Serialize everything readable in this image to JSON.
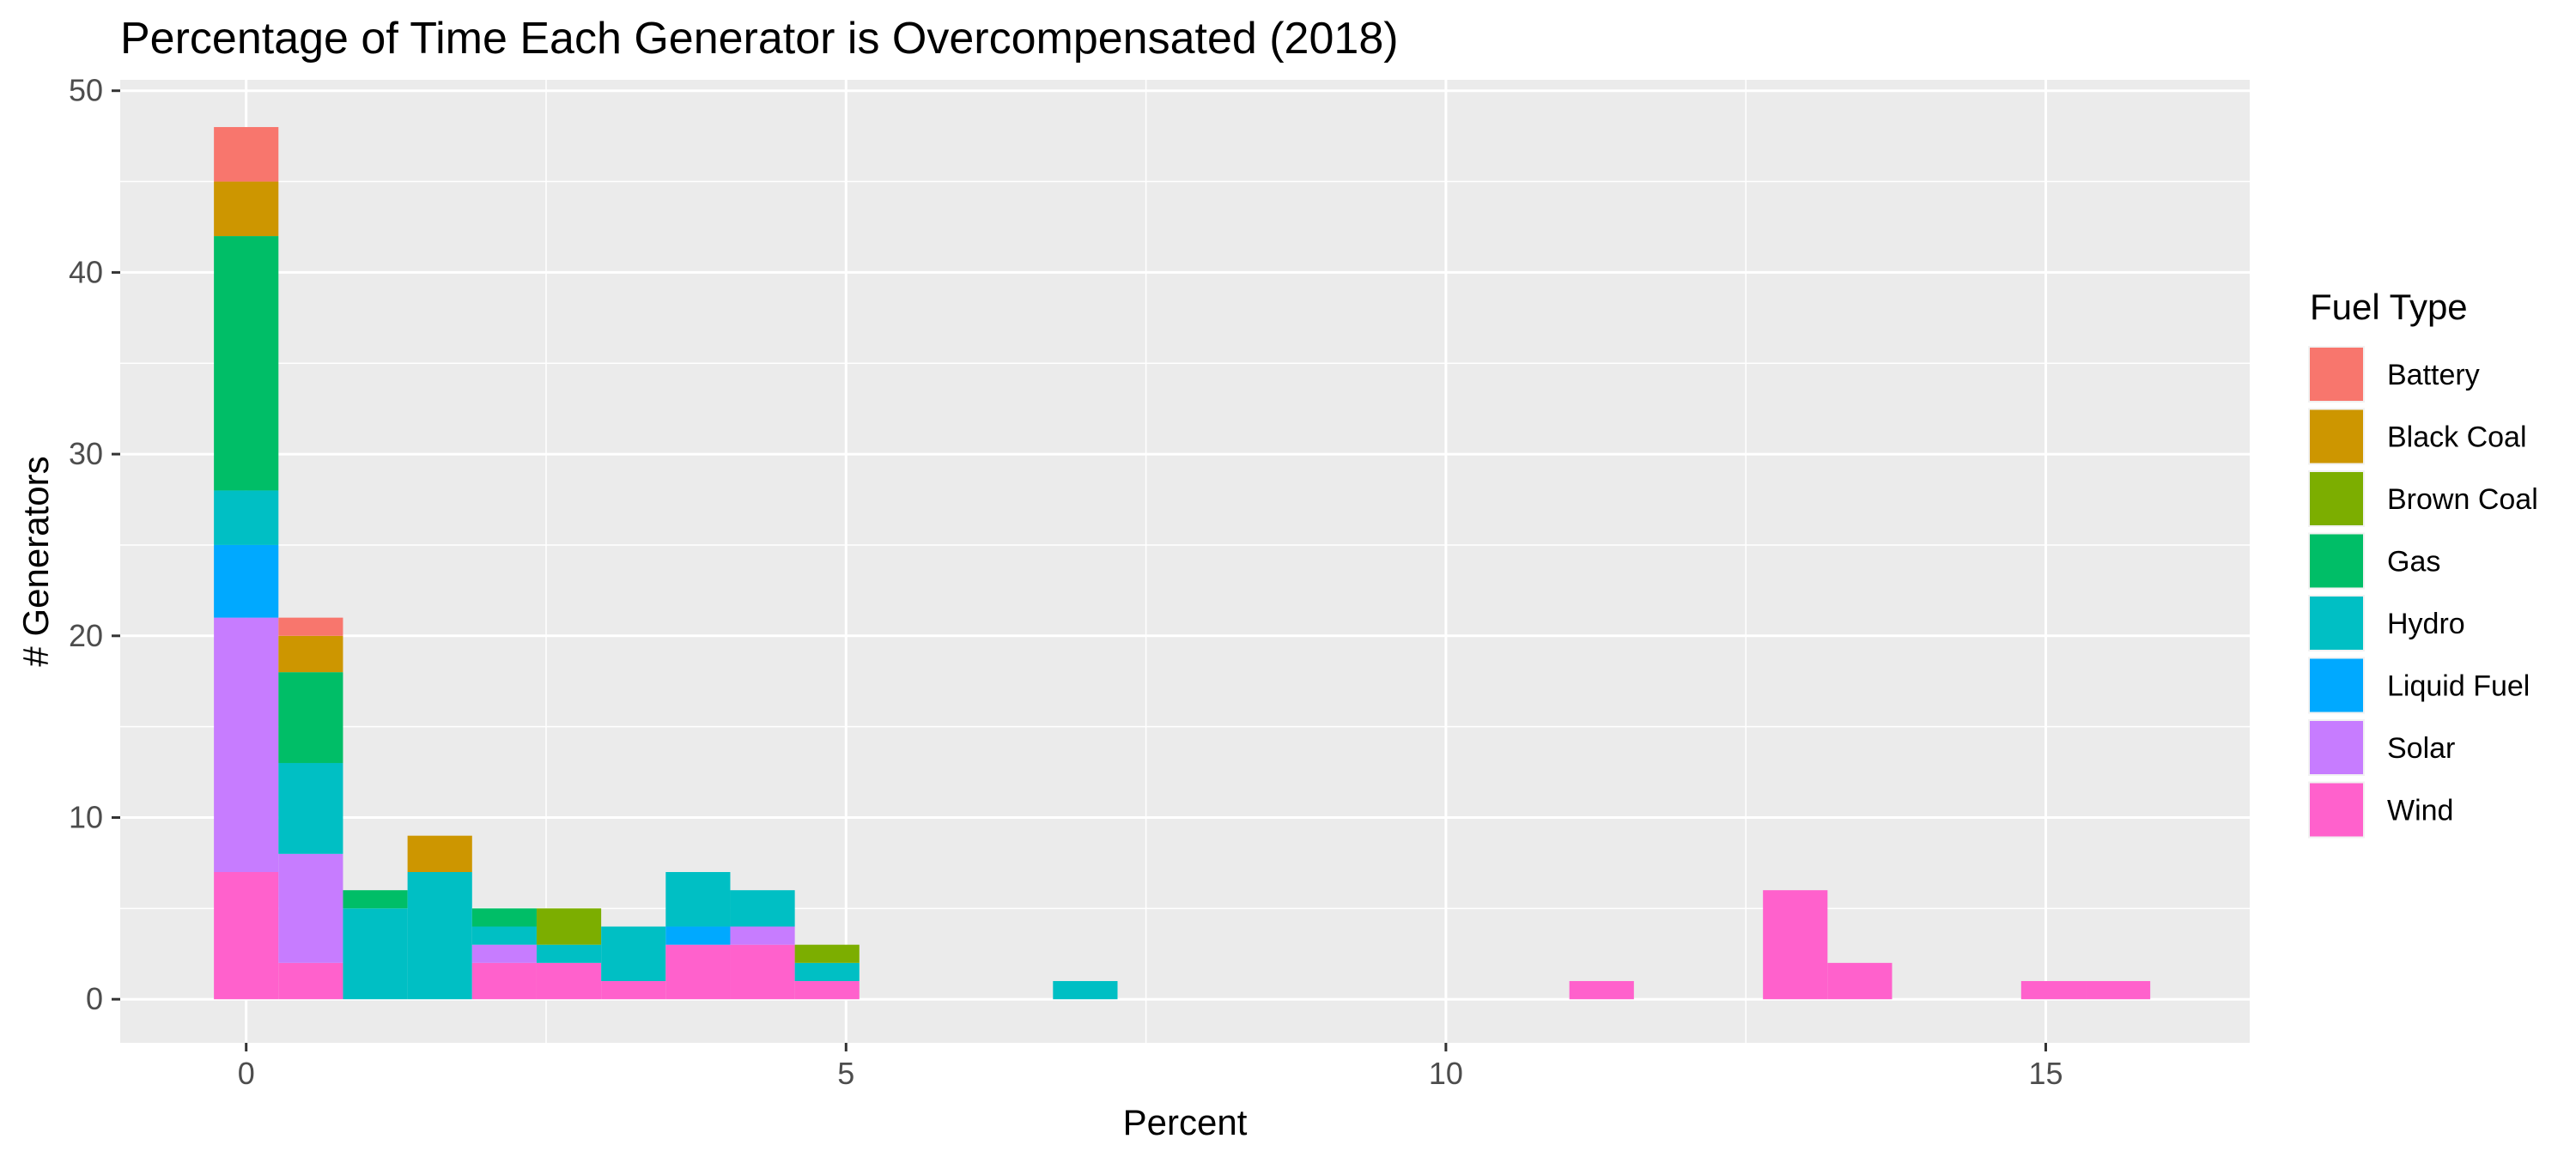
{
  "chart_data": {
    "type": "bar",
    "stacked": true,
    "title": "Percentage of Time Each Generator is Overcompensated (2018)",
    "xlabel": "Percent",
    "ylabel": "# Generators",
    "xlim": [
      -1.05,
      16.7
    ],
    "ylim": [
      -2.4,
      50.6
    ],
    "xticks": [
      0,
      5,
      10,
      15
    ],
    "yticks": [
      0,
      10,
      20,
      30,
      40,
      50
    ],
    "grid": true,
    "bin_width": 0.538,
    "bin_centers": [
      0,
      0.538,
      1.076,
      1.614,
      2.152,
      2.69,
      3.228,
      3.766,
      4.304,
      4.842,
      6.994,
      11.298,
      12.912,
      13.45,
      15.064,
      15.602
    ],
    "legend": {
      "title": "Fuel Type",
      "position": "right"
    },
    "series": [
      {
        "name": "Wind",
        "color": "#FF61CC",
        "values": [
          7,
          2,
          0,
          0,
          2,
          2,
          1,
          3,
          3,
          1,
          0,
          1,
          6,
          2,
          1,
          1
        ]
      },
      {
        "name": "Solar",
        "color": "#C77CFF",
        "values": [
          14,
          6,
          0,
          0,
          1,
          0,
          0,
          0,
          1,
          0,
          0,
          0,
          0,
          0,
          0,
          0
        ]
      },
      {
        "name": "Liquid Fuel",
        "color": "#00A9FF",
        "values": [
          4,
          0,
          0,
          0,
          0,
          0,
          0,
          1,
          0,
          0,
          0,
          0,
          0,
          0,
          0,
          0
        ]
      },
      {
        "name": "Hydro",
        "color": "#00BFC4",
        "values": [
          3,
          5,
          5,
          7,
          1,
          1,
          3,
          3,
          2,
          1,
          1,
          0,
          0,
          0,
          0,
          0
        ]
      },
      {
        "name": "Gas",
        "color": "#00BE67",
        "values": [
          14,
          5,
          1,
          0,
          1,
          0,
          0,
          0,
          0,
          0,
          0,
          0,
          0,
          0,
          0,
          0
        ]
      },
      {
        "name": "Brown Coal",
        "color": "#7CAE00",
        "values": [
          0,
          0,
          0,
          0,
          0,
          2,
          0,
          0,
          0,
          1,
          0,
          0,
          0,
          0,
          0,
          0
        ]
      },
      {
        "name": "Black Coal",
        "color": "#CD9600",
        "values": [
          3,
          2,
          0,
          2,
          0,
          0,
          0,
          0,
          0,
          0,
          0,
          0,
          0,
          0,
          0,
          0
        ]
      },
      {
        "name": "Battery",
        "color": "#F8766D",
        "values": [
          3,
          1,
          0,
          0,
          0,
          0,
          0,
          0,
          0,
          0,
          0,
          0,
          0,
          0,
          0,
          0
        ]
      }
    ],
    "legend_order": [
      "Battery",
      "Black Coal",
      "Brown Coal",
      "Gas",
      "Hydro",
      "Liquid Fuel",
      "Solar",
      "Wind"
    ],
    "panel_background": "#EBEBEB",
    "grid_color": "#FFFFFF"
  }
}
